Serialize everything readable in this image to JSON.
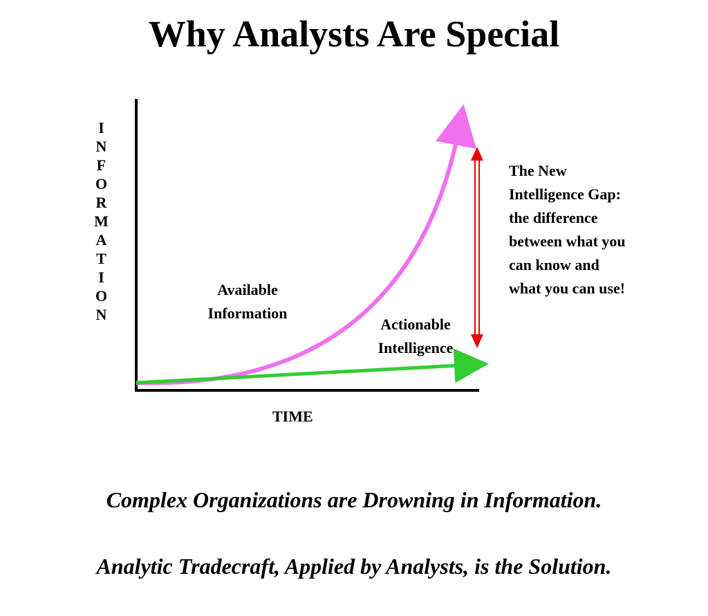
{
  "title": "Why Analysts Are Special",
  "diagram": {
    "y_axis_label": "INFORMATION",
    "x_axis_label": "TIME",
    "curve_label": "Available\nInformation",
    "line_label": "Actionable\nIntelligence",
    "gap_note": "The New Intelligence Gap:  the difference between what you can know and what you can use!"
  },
  "footer": {
    "lines": [
      "Complex Organizations are Drowning in Information.",
      "Analytic Tradecraft, Applied by Analysts, is the Solution."
    ]
  }
}
